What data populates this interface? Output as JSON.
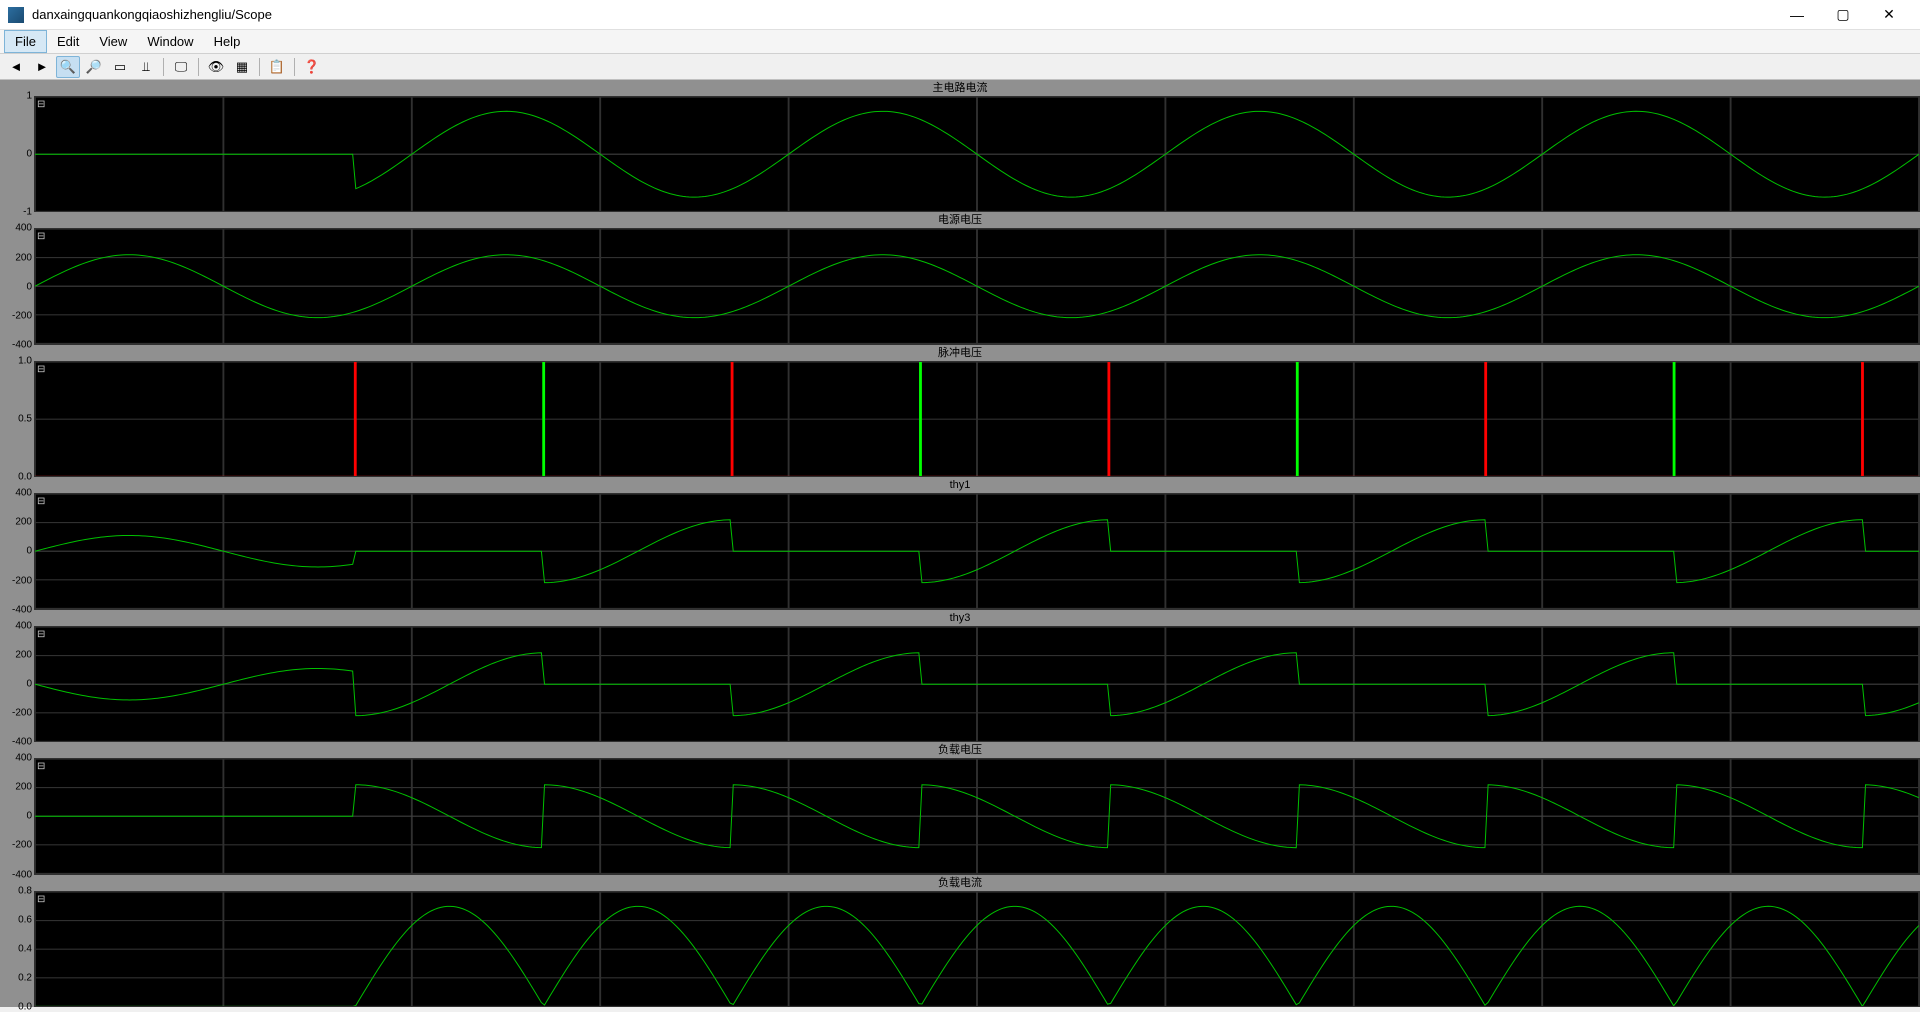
{
  "window": {
    "title": "danxaingquankongqiaoshizhengliu/Scope",
    "icon_name": "scope-app-icon"
  },
  "menu": {
    "items": [
      "File",
      "Edit",
      "View",
      "Window",
      "Help"
    ],
    "active_index": 0
  },
  "toolbar": {
    "buttons": [
      {
        "name": "back-icon",
        "glyph": "◄"
      },
      {
        "name": "forward-icon",
        "glyph": "►"
      },
      {
        "name": "zoom-in-icon",
        "glyph": "🔍",
        "active": true
      },
      {
        "name": "zoom-out-icon",
        "glyph": "🔎"
      },
      {
        "name": "pan-icon",
        "glyph": "▭"
      },
      {
        "name": "cursor-icon",
        "glyph": "⫫"
      },
      {
        "name": "sep"
      },
      {
        "name": "screenshot-icon",
        "glyph": "🖵"
      },
      {
        "name": "sep"
      },
      {
        "name": "highlight-icon",
        "glyph": "👁"
      },
      {
        "name": "settings-icon",
        "glyph": "▦"
      },
      {
        "name": "sep"
      },
      {
        "name": "copy-icon",
        "glyph": "📋"
      },
      {
        "name": "sep"
      },
      {
        "name": "help-icon",
        "glyph": "❓"
      }
    ]
  },
  "scope": {
    "x_range": [
      0,
      0.1
    ],
    "x_ticks": [
      0,
      0.01,
      0.02,
      0.03,
      0.04,
      0.05,
      0.06,
      0.07,
      0.08,
      0.09,
      0.1
    ],
    "sine_freq_hz": 50,
    "fire_angle_rad": 1.5708,
    "trace_color": "#00c000",
    "pulse_color_a": "#00ff00",
    "pulse_color_b": "#ff0000",
    "grid_color": "#303030",
    "bg_color": "#000000",
    "panel_title_bg": "#909090",
    "panel_title_color": "#000000",
    "label_fontsize": 10,
    "title_fontsize": 11,
    "panels": [
      {
        "key": "main_current",
        "title": "主电路电流",
        "ylim": [
          -1,
          1
        ],
        "yticks": [
          -1,
          0,
          1
        ],
        "kind": "sine_delayed",
        "amp": 0.75,
        "delay_quarter": true
      },
      {
        "key": "src_voltage",
        "title": "电源电压",
        "ylim": [
          -400,
          400
        ],
        "yticks": [
          -400,
          -200,
          0,
          200,
          400
        ],
        "kind": "sine",
        "amp": 220
      },
      {
        "key": "pulse",
        "title": "脉冲电压",
        "ylim": [
          0,
          1.0
        ],
        "yticks": [
          0.0,
          0.5,
          1.0
        ],
        "kind": "pulse"
      },
      {
        "key": "thy1",
        "title": "thy1",
        "ylim": [
          -400,
          400
        ],
        "yticks": [
          -400,
          -200,
          0,
          200,
          400
        ],
        "kind": "thy",
        "amp": 220,
        "polarity": 1
      },
      {
        "key": "thy3",
        "title": "thy3",
        "ylim": [
          -400,
          400
        ],
        "yticks": [
          -400,
          -200,
          0,
          200,
          400
        ],
        "kind": "thy",
        "amp": 220,
        "polarity": -1
      },
      {
        "key": "load_v",
        "title": "负载电压",
        "ylim": [
          -400,
          400
        ],
        "yticks": [
          -400,
          -200,
          0,
          200,
          400
        ],
        "kind": "load_v",
        "amp": 220
      },
      {
        "key": "load_i",
        "title": "负载电流",
        "ylim": [
          0,
          0.8
        ],
        "yticks": [
          0.0,
          0.2,
          0.4,
          0.6,
          0.8
        ],
        "kind": "load_i",
        "amp": 0.7
      }
    ]
  }
}
